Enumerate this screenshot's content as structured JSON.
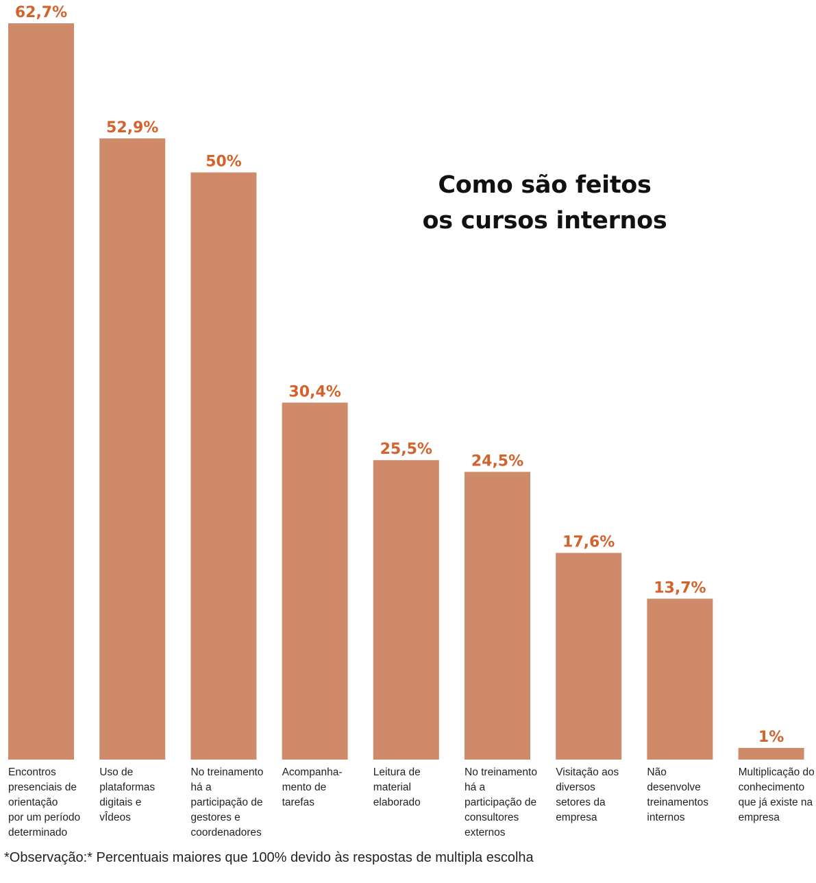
{
  "title_lines": [
    "Como são feitos",
    "os cursos internos"
  ],
  "note": "*Observação:* Percentuais maiores que 100% devido às respostas de multipla escolha",
  "colors": {
    "bar": "#cf8a6a",
    "value_label": "#d4622c",
    "category_label": "#222222"
  },
  "chart_data": {
    "type": "bar",
    "title": "Como são feitos os cursos internos",
    "ylim": [
      0,
      62.7
    ],
    "grid": false,
    "categories": [
      [
        "Encontros",
        "presenciais de",
        "orientação",
        "por um período",
        "determinado"
      ],
      [
        "Uso de",
        "plataformas",
        "digitais e",
        "vÎdeos"
      ],
      [
        "No treinamento",
        "há a",
        "participação de",
        "gestores e",
        "coordenadores"
      ],
      [
        "Acompanha-",
        "mento de",
        "tarefas"
      ],
      [
        "Leitura de",
        "material",
        "elaborado"
      ],
      [
        "No treinamento",
        "há a",
        "participação de",
        "consultores",
        "externos"
      ],
      [
        "Visitação aos",
        "diversos",
        "setores da",
        "empresa"
      ],
      [
        "Não",
        "desenvolve",
        "treinamentos",
        "internos"
      ],
      [
        "Multiplicação do",
        "conhecimento",
        "que já existe na",
        "empresa"
      ]
    ],
    "values": [
      62.7,
      52.9,
      50,
      30.4,
      25.5,
      24.5,
      17.6,
      13.7,
      1
    ],
    "value_labels": [
      "62,7%",
      "52,9%",
      "50%",
      "30,4%",
      "25,5%",
      "24,5%",
      "17,6%",
      "13,7%",
      "1%"
    ]
  }
}
